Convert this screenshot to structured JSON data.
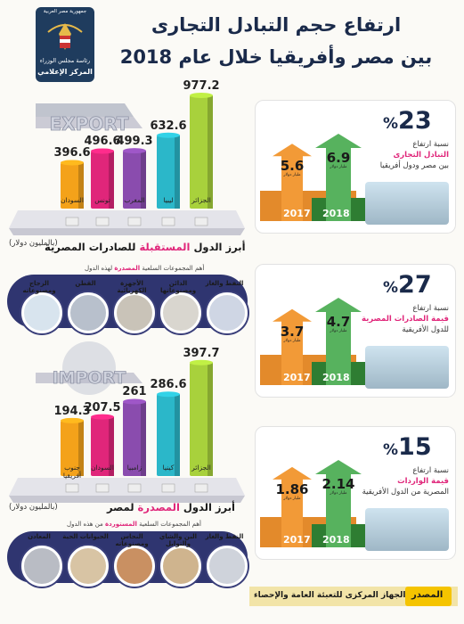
{
  "header": {
    "title_line1": "ارتفاع حجم التبادل التجارى",
    "title_line2": "بين مصر وأفريقيا خلال عام 2018",
    "logo_line1": "جمهورية مصر العربية",
    "logo_line2": "رئاسة مجلس الوزراء",
    "logo_line3": "المركز الإعلامي"
  },
  "export_section": {
    "banner": "EXPORT",
    "label_prefix": "أبرز الدول ",
    "label_highlight": "المستقبلة",
    "label_suffix": " للصادرات المصرية",
    "unit": "(بالمليون دولار)",
    "groups_head_prefix": "أهم المجموعات السلعية ",
    "groups_head_highlight": "المصدرة",
    "groups_head_suffix": " لهذه الدول",
    "products": [
      "النفط والغاز",
      "الدائن ومصنوعاتها",
      "الأجهزة الكهربائية",
      "القطن",
      "الزجاج ومصنوعاته"
    ]
  },
  "import_section": {
    "banner": "IMPORT",
    "label_prefix": "أبرز الدول ",
    "label_highlight": "المصدرة",
    "label_suffix": " لمصر",
    "unit": "(بالمليون دولار)",
    "groups_head_prefix": "أهم المجموعات السلعية ",
    "groups_head_highlight": "المستوردة",
    "groups_head_suffix": " من هذه الدول",
    "products": [
      "النفط والغاز",
      "البن والشاي والتوابل",
      "النحاس ومصنوعاته",
      "الحيوانات الحية",
      "المعادن"
    ]
  },
  "chart_data": [
    {
      "type": "bar",
      "title": "أبرز الدول المستقبلة للصادرات المصرية",
      "ylabel": "(بالمليون دولار)",
      "categories": [
        "السودان",
        "تونس",
        "المغرب",
        "ليبيا",
        "الجزائر"
      ],
      "values": [
        396.6,
        496.6,
        499.3,
        632.6,
        977.2
      ],
      "value_labels": [
        "396.6",
        "496.6",
        "499.3",
        "632.6",
        "977.2"
      ],
      "colors": [
        "#f4a21a",
        "#e0267a",
        "#8a4cae",
        "#2bb7c9",
        "#a8d13c"
      ],
      "ylim": [
        0,
        1000
      ]
    },
    {
      "type": "bar",
      "title": "أبرز الدول المصدرة لمصر",
      "ylabel": "(بالمليون دولار)",
      "categories": [
        "جنوب أفريقيا",
        "السودان",
        "زامبيا",
        "كينيا",
        "الجزائر"
      ],
      "values": [
        194.3,
        207.5,
        261,
        286.6,
        397.7
      ],
      "value_labels": [
        "194.3",
        "207.5",
        "261",
        "286.6",
        "397.7"
      ],
      "colors": [
        "#f4a21a",
        "#e0267a",
        "#8a4cae",
        "#2bb7c9",
        "#a8d13c"
      ],
      "ylim": [
        0,
        400
      ]
    },
    {
      "type": "bar",
      "title": "نسبة ارتفاع التبادل التجارى بين مصر ودول أفريقيا",
      "categories": [
        "2017",
        "2018"
      ],
      "values": [
        5.6,
        6.9
      ],
      "unit": "مليار دولار",
      "pct": "23"
    },
    {
      "type": "bar",
      "title": "نسبة ارتفاع قيمة الصادرات المصرية للدول الأفريقية",
      "categories": [
        "2017",
        "2018"
      ],
      "values": [
        3.7,
        4.7
      ],
      "unit": "مليار دولار",
      "pct": "27"
    },
    {
      "type": "bar",
      "title": "نسبة ارتفاع قيمة الواردات المصرية من الدول الأفريقية",
      "categories": [
        "2017",
        "2018"
      ],
      "values": [
        1.86,
        2.14
      ],
      "unit": "مليار دولار",
      "pct": "15"
    }
  ],
  "stats": [
    {
      "pct": "23",
      "l1": "نسبة ارتفاع",
      "l2": "التبادل التجارى",
      "l3": "بين مصر ودول أفريقيا",
      "v2017": "5.6",
      "v2018": "6.9",
      "y1": "2017",
      "y2": "2018",
      "unit": "مليار دولار"
    },
    {
      "pct": "27",
      "l1": "نسبة ارتفاع",
      "l2": "قيمة الصادرات المصرية",
      "l3": "للدول الأفريقية",
      "v2017": "3.7",
      "v2018": "4.7",
      "y1": "2017",
      "y2": "2018",
      "unit": "مليار دولار"
    },
    {
      "pct": "15",
      "l1": "نسبة ارتفاع",
      "l2": "قيمة الواردات",
      "l3": "المصرية من الدول الأفريقية",
      "v2017": "1.86",
      "v2018": "2.14",
      "y1": "2017",
      "y2": "2018",
      "unit": "مليار دولار"
    }
  ],
  "footer": {
    "source_label": "المصدر",
    "source_text": "الجهاز المركزى للتعبئة العامة والإحصاء"
  }
}
